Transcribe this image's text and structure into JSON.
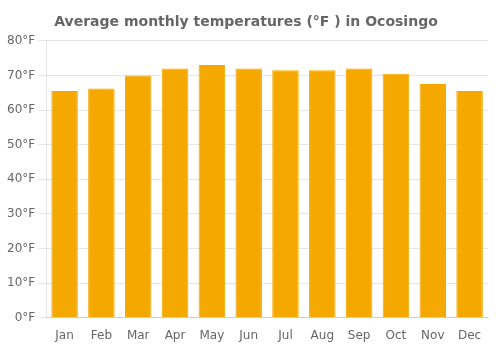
{
  "chart_data": {
    "type": "bar",
    "title": "Average monthly temperatures (°F ) in Ocosingo",
    "categories": [
      "Jan",
      "Feb",
      "Mar",
      "Apr",
      "May",
      "Jun",
      "Jul",
      "Aug",
      "Sep",
      "Oct",
      "Nov",
      "Dec"
    ],
    "values": [
      65.5,
      66.2,
      70.0,
      72.0,
      73.0,
      72.0,
      71.5,
      71.5,
      72.0,
      70.5,
      67.5,
      65.5
    ],
    "color": "#F5A800",
    "ylim": [
      0,
      80
    ],
    "yticks": [
      {
        "value": 0,
        "label": "0°F"
      },
      {
        "value": 10,
        "label": "10°F"
      },
      {
        "value": 20,
        "label": "20°F"
      },
      {
        "value": 30,
        "label": "30°F"
      },
      {
        "value": 40,
        "label": "40°F"
      },
      {
        "value": 50,
        "label": "50°F"
      },
      {
        "value": 60,
        "label": "60°F"
      },
      {
        "value": 70,
        "label": "70°F"
      },
      {
        "value": 80,
        "label": "80°F"
      }
    ],
    "grid": true
  }
}
